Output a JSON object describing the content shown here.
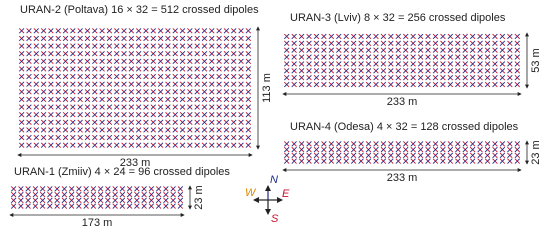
{
  "symbols": {
    "times": "×",
    "equals": "="
  },
  "arrays": [
    {
      "name": "URAN-2 (Poltava)",
      "rows": 16,
      "cols": 32,
      "total": 512,
      "unit": "crossed dipoles",
      "width": "233 m",
      "height": "113 m"
    },
    {
      "name": "URAN-3 (Lviv)",
      "rows": 8,
      "cols": 32,
      "total": 256,
      "unit": "crossed dipoles",
      "width": "233 m",
      "height": "53 m"
    },
    {
      "name": "URAN-4 (Odesa)",
      "rows": 4,
      "cols": 32,
      "total": 128,
      "unit": "crossed dipoles",
      "width": "233 m",
      "height": "23 m"
    },
    {
      "name": "URAN-1 (Zmiiv)",
      "rows": 4,
      "cols": 24,
      "total": 96,
      "unit": "crossed dipoles",
      "width": "173 m",
      "height": "23 m"
    }
  ],
  "compass": {
    "n": "N",
    "e": "E",
    "s": "S",
    "w": "W"
  }
}
